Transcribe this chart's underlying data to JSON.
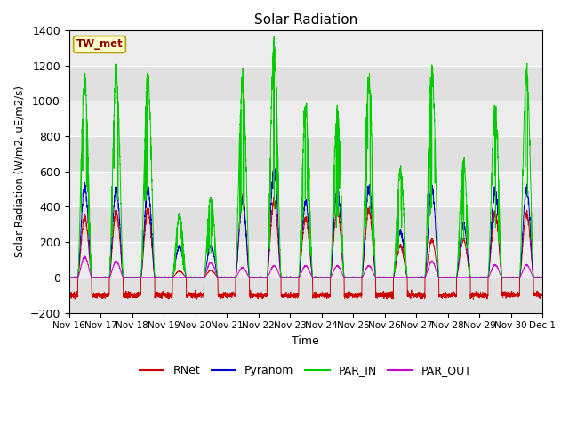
{
  "title": "Solar Radiation",
  "ylabel": "Solar Radiation (W/m2, uE/m2/s)",
  "xlabel": "Time",
  "ylim": [
    -200,
    1400
  ],
  "yticks": [
    -200,
    0,
    200,
    400,
    600,
    800,
    1000,
    1200,
    1400
  ],
  "station_label": "TW_met",
  "bg_color": "#e8e8e8",
  "colors": {
    "RNet": "#cc0000",
    "Pyranom": "#0000cc",
    "PAR_IN": "#00cc00",
    "PAR_OUT": "#cc00cc"
  },
  "x_tick_labels": [
    "Nov 16",
    "Nov 17",
    "Nov 18",
    "Nov 19",
    "Nov 20",
    "Nov 21",
    "Nov 22",
    "Nov 23",
    "Nov 24",
    "Nov 25",
    "Nov 26",
    "Nov 27",
    "Nov 28",
    "Nov 29",
    "Nov 30",
    "Dec 1"
  ],
  "n_days": 15,
  "par_in_peaks": [
    1100,
    1150,
    1120,
    350,
    450,
    1100,
    1290,
    940,
    920,
    1100,
    600,
    1150,
    650,
    930,
    1150
  ],
  "pyranom_peaks": [
    510,
    500,
    500,
    175,
    180,
    430,
    610,
    420,
    500,
    500,
    260,
    500,
    300,
    490,
    500
  ],
  "rnet_peaks": [
    340,
    370,
    380,
    35,
    40,
    440,
    430,
    330,
    380,
    380,
    180,
    210,
    215,
    360,
    360
  ],
  "par_out_peaks": [
    115,
    90,
    0,
    0,
    85,
    55,
    65,
    65,
    65,
    65,
    0,
    90,
    0,
    70,
    70
  ],
  "night_rnet": -100,
  "pts_per_day": 288
}
